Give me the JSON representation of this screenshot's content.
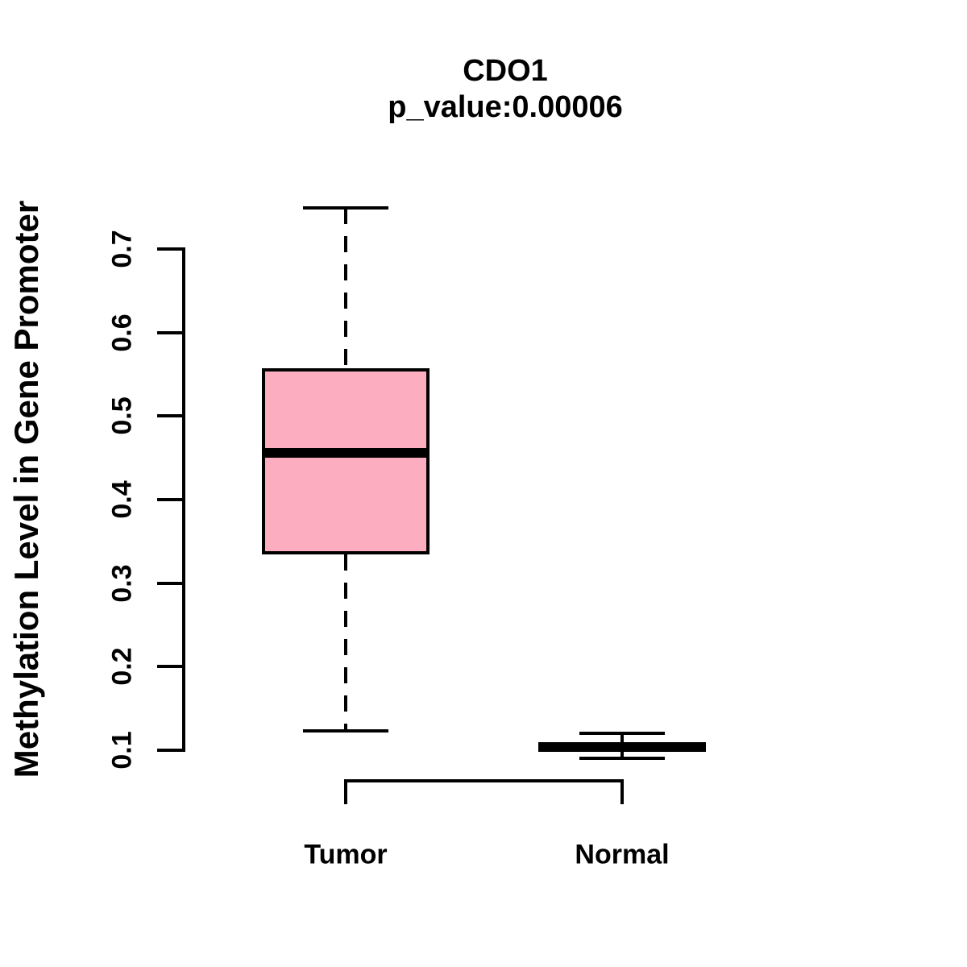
{
  "title": "CDO1",
  "subtitle": "p_value:0.00006",
  "colors": {
    "box_fill": "#FCAEC0",
    "line": "#000000",
    "background": "#FFFFFF"
  },
  "chart_data": {
    "type": "boxplot",
    "title": "CDO1",
    "subtitle": "p_value:0.00006",
    "xlabel": "",
    "ylabel": "Methylation Level in Gene Promoter",
    "ylim": [
      0.1,
      0.7
    ],
    "y_ticks": [
      0.1,
      0.2,
      0.3,
      0.4,
      0.5,
      0.6,
      0.7
    ],
    "y_tick_labels": [
      "0.1",
      "0.2",
      "0.3",
      "0.4",
      "0.5",
      "0.6",
      "0.7"
    ],
    "grid": false,
    "legend": false,
    "categories": [
      "Tumor",
      "Normal"
    ],
    "series": [
      {
        "name": "Tumor",
        "whisker_low": 0.123,
        "q1": 0.334,
        "median": 0.456,
        "q3": 0.557,
        "whisker_high": 0.749,
        "fill": "#FCAEC0"
      },
      {
        "name": "Normal",
        "whisker_low": 0.09,
        "q1": 0.098,
        "median": 0.1035,
        "q3": 0.109,
        "whisker_high": 0.12,
        "fill": "#FCAEC0"
      }
    ]
  }
}
